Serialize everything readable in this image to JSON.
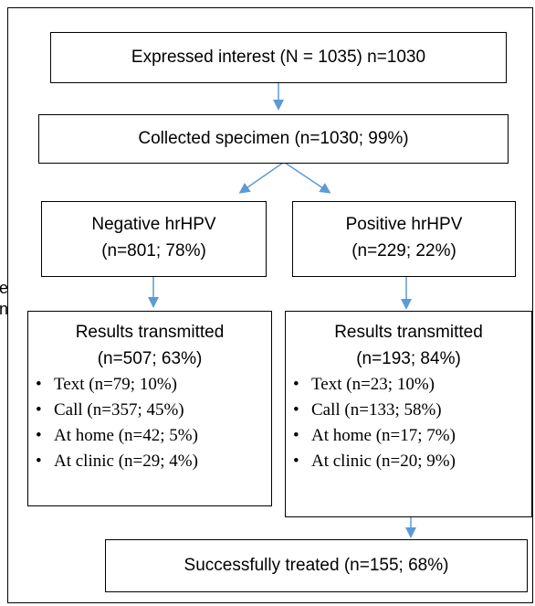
{
  "nodes": [
    {
      "lines": [
        "Expressed interest (N = 1035) n=1030"
      ]
    },
    {
      "lines": [
        "Collected specimen (n=1030; 99%)"
      ]
    },
    {
      "lines": [
        "Negative hrHPV",
        "(n=801; 78%)"
      ]
    },
    {
      "lines": [
        "Positive hrHPV",
        "(n=229; 22%)"
      ]
    },
    {
      "lines": [
        "Results transmitted",
        "(n=507; 63%)"
      ],
      "bullets": [
        "Text (n=79; 10%)",
        "Call (n=357; 45%)",
        "At home (n=42; 5%)",
        "At clinic (n=29; 4%)"
      ]
    },
    {
      "lines": [
        "Results transmitted",
        "(n=193; 84%)"
      ],
      "bullets": [
        "Text (n=23; 10%)",
        "Call (n=133; 58%)",
        "At home (n=17; 7%)",
        "At clinic (n=20; 9%)"
      ]
    },
    {
      "lines": [
        "Successfully treated (n=155; 68%)"
      ]
    }
  ],
  "fragments": [
    "e",
    "n"
  ]
}
